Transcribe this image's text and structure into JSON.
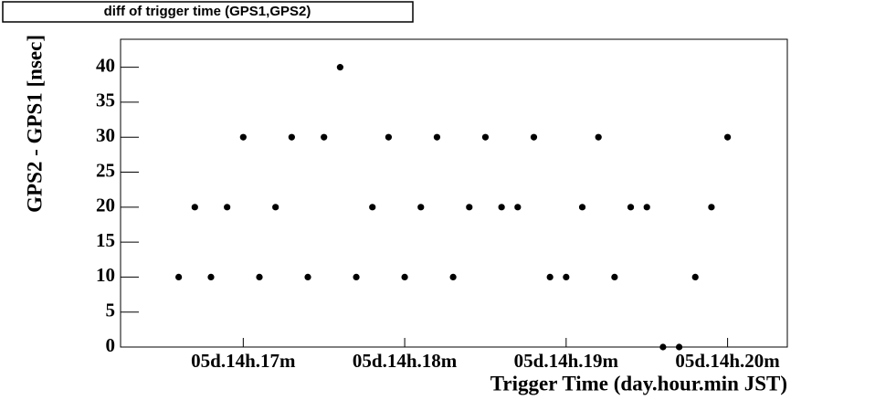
{
  "chart_data": {
    "type": "scatter",
    "title": "diff of trigger time (GPS1,GPS2)",
    "x_label": "Trigger Time (day.hour.min JST)",
    "y_label": "GPS2 - GPS1 [nsec]",
    "color": "#000000",
    "x": [
      16.6,
      16.7,
      16.8,
      16.9,
      17.0,
      17.1,
      17.2,
      17.3,
      17.4,
      17.5,
      17.6,
      17.7,
      17.8,
      17.9,
      18.0,
      18.1,
      18.2,
      18.3,
      18.4,
      18.5,
      18.6,
      18.7,
      18.8,
      18.9,
      19.0,
      19.1,
      19.2,
      19.3,
      19.4,
      19.5,
      19.6,
      19.7,
      19.8,
      19.9,
      20.0
    ],
    "values": [
      10,
      20,
      10,
      20,
      30,
      10,
      20,
      30,
      10,
      30,
      40,
      10,
      20,
      30,
      10,
      20,
      30,
      10,
      20,
      30,
      20,
      20,
      30,
      10,
      10,
      20,
      30,
      10,
      20,
      20,
      0,
      0,
      10,
      20,
      30
    ],
    "xlim": [
      16.24,
      20.37
    ],
    "xticks": [
      {
        "value": 17,
        "label": "05d.14h.17m"
      },
      {
        "value": 18,
        "label": "05d.14h.18m"
      },
      {
        "value": 19,
        "label": "05d.14h.19m"
      },
      {
        "value": 20,
        "label": "05d.14h.20m"
      }
    ],
    "ylim": [
      0,
      44
    ],
    "yticks": [
      0,
      5,
      10,
      15,
      20,
      25,
      30,
      35,
      40
    ]
  }
}
